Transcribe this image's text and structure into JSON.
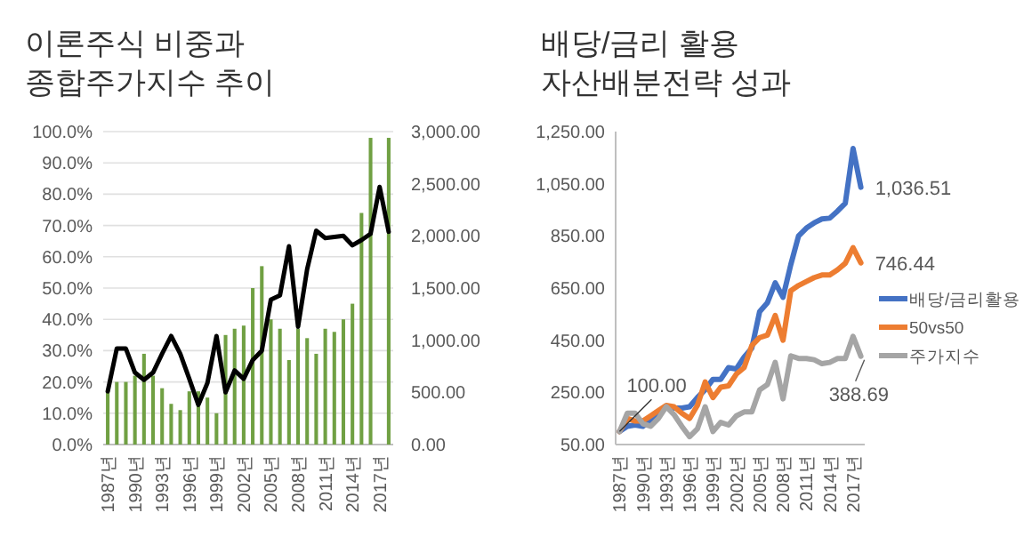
{
  "chart_data": [
    {
      "type": "bar",
      "title": "이론주식 비중과\n종합주가지수 추이",
      "categories": [
        "1987년",
        null,
        null,
        "1990년",
        null,
        null,
        "1993년",
        null,
        null,
        "1996년",
        null,
        null,
        "1999년",
        null,
        null,
        "2002년",
        null,
        null,
        "2005년",
        null,
        null,
        "2008년",
        null,
        null,
        "2011년",
        null,
        null,
        "2014년",
        null,
        null,
        "2017년",
        null
      ],
      "series": [
        {
          "color": "#70a043",
          "values": [
            17,
            20,
            20,
            22,
            29,
            22,
            18,
            13,
            11,
            17,
            17,
            15,
            10,
            35,
            37,
            38,
            50,
            57,
            40,
            37,
            27,
            37,
            34,
            29,
            37,
            36,
            40,
            45,
            74,
            98,
            null,
            98
          ]
        },
        {
          "type": "line",
          "axis": "y2",
          "color": "#000000",
          "values": [
            510,
            920,
            920,
            690,
            620,
            690,
            870,
            1040,
            870,
            630,
            380,
            590,
            1040,
            500,
            710,
            630,
            810,
            900,
            1390,
            1430,
            1900,
            1130,
            1680,
            2050,
            1980,
            1990,
            2000,
            1910,
            1960,
            2020,
            2470,
            2040
          ]
        }
      ],
      "ylim": [
        0,
        100
      ],
      "yticks": [
        {
          "value": 0,
          "label": "0.0%"
        },
        {
          "value": 10,
          "label": "10.0%"
        },
        {
          "value": 20,
          "label": "20.0%"
        },
        {
          "value": 30,
          "label": "30.0%"
        },
        {
          "value": 40,
          "label": "40.0%"
        },
        {
          "value": 50,
          "label": "50.0%"
        },
        {
          "value": 60,
          "label": "60.0%"
        },
        {
          "value": 70,
          "label": "70.0%"
        },
        {
          "value": 80,
          "label": "80.0%"
        },
        {
          "value": 90,
          "label": "90.0%"
        },
        {
          "value": 100,
          "label": "100.0%"
        }
      ],
      "y2lim": [
        0,
        3000
      ],
      "y2ticks": [
        {
          "value": 0,
          "label": "0.00"
        },
        {
          "value": 500,
          "label": "500.00"
        },
        {
          "value": 1000,
          "label": "1,000.00"
        },
        {
          "value": 1500,
          "label": "1,500.00"
        },
        {
          "value": 2000,
          "label": "2,000.00"
        },
        {
          "value": 2500,
          "label": "2,500.00"
        },
        {
          "value": 3000,
          "label": "3,000.00"
        }
      ],
      "grid": "y"
    },
    {
      "type": "line",
      "title": "배당/금리 활용\n자산배분전략 성과",
      "categories": [
        "1987년",
        null,
        null,
        "1990년",
        null,
        null,
        "1993년",
        null,
        null,
        "1996년",
        null,
        null,
        "1999년",
        null,
        null,
        "2002년",
        null,
        null,
        "2005년",
        null,
        null,
        "2008년",
        null,
        null,
        "2011년",
        null,
        null,
        "2014년",
        null,
        null,
        "2017년",
        null
      ],
      "series": [
        {
          "name": "배당/금리활용",
          "color": "#4472c4",
          "values": [
            100,
            120,
            125,
            120,
            140,
            170,
            195,
            190,
            190,
            195,
            230,
            260,
            300,
            300,
            345,
            340,
            385,
            420,
            560,
            594,
            670,
            615,
            740,
            850,
            880,
            900,
            915,
            918,
            945,
            975,
            1185,
            1036.51
          ],
          "value_labels": [
            null,
            null,
            null,
            null,
            null,
            null,
            null,
            null,
            null,
            null,
            null,
            null,
            null,
            null,
            null,
            null,
            null,
            null,
            null,
            null,
            null,
            null,
            null,
            null,
            null,
            null,
            null,
            null,
            null,
            null,
            null,
            "1,036.51"
          ]
        },
        {
          "name": "50vs50",
          "color": "#ed7d31",
          "values": [
            100,
            150,
            140,
            140,
            160,
            180,
            200,
            195,
            170,
            150,
            200,
            290,
            230,
            270,
            275,
            320,
            345,
            430,
            460,
            470,
            545,
            450,
            640,
            660,
            675,
            690,
            700,
            700,
            720,
            745,
            805,
            746.44
          ],
          "value_labels": [
            null,
            null,
            null,
            null,
            null,
            null,
            null,
            null,
            null,
            null,
            null,
            null,
            null,
            null,
            null,
            null,
            null,
            null,
            null,
            null,
            null,
            null,
            null,
            null,
            null,
            null,
            null,
            null,
            null,
            null,
            null,
            "746.44"
          ]
        },
        {
          "name": "주가지수",
          "color": "#a5a5a5",
          "values": [
            100,
            170,
            170,
            130,
            120,
            150,
            195,
            165,
            120,
            80,
            110,
            195,
            100,
            135,
            125,
            160,
            175,
            175,
            260,
            280,
            365,
            225,
            390,
            380,
            380,
            375,
            360,
            365,
            380,
            380,
            465,
            388.69
          ],
          "value_labels": [
            null,
            null,
            null,
            null,
            null,
            null,
            null,
            null,
            null,
            null,
            null,
            null,
            null,
            null,
            null,
            null,
            null,
            null,
            null,
            null,
            null,
            null,
            null,
            null,
            null,
            null,
            null,
            null,
            null,
            null,
            null,
            "388.69"
          ]
        }
      ],
      "ylim": [
        50,
        1250
      ],
      "yticks": [
        {
          "value": 50,
          "label": "50.00"
        },
        {
          "value": 250,
          "label": "250.00"
        },
        {
          "value": 450,
          "label": "450.00"
        },
        {
          "value": 650,
          "label": "650.00"
        },
        {
          "value": 850,
          "label": "850.00"
        },
        {
          "value": 1050,
          "label": "1,050.00"
        },
        {
          "value": 1250,
          "label": "1,250.00"
        }
      ],
      "annotations": [
        {
          "text": "100.00",
          "x": "1987년",
          "y": 100
        }
      ],
      "legend": "right"
    }
  ]
}
